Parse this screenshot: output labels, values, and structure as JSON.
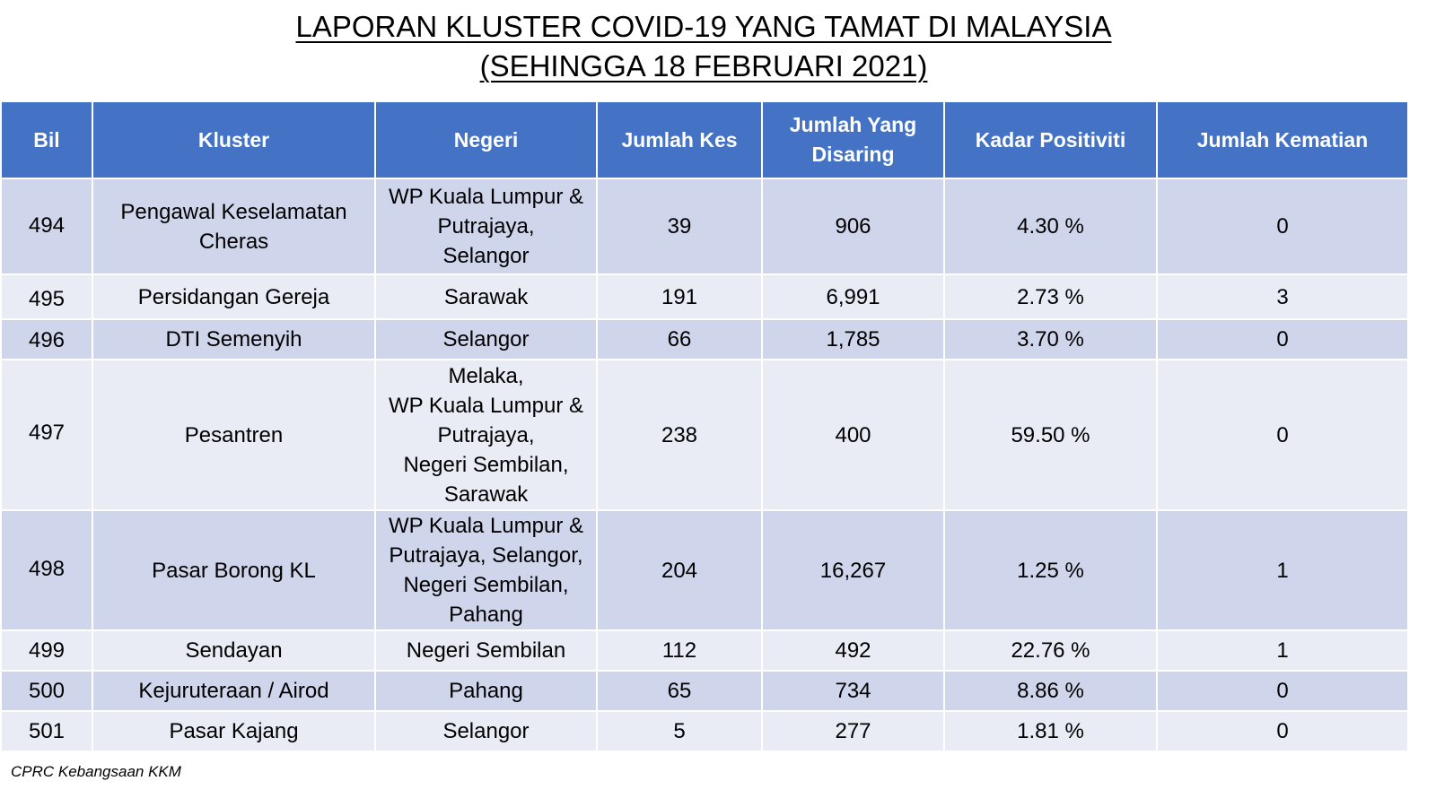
{
  "title": {
    "line1": "LAPORAN KLUSTER COVID-19 YANG TAMAT DI MALAYSIA",
    "line2": "(SEHINGGA 18 FEBRUARI 2021)"
  },
  "table": {
    "headers": [
      "Bil",
      "Kluster",
      "Negeri",
      "Jumlah Kes",
      "Jumlah Yang Disaring",
      "Kadar Positiviti",
      "Jumlah Kematian"
    ],
    "rows": [
      {
        "bil": "494",
        "kluster": [
          "Pengawal Keselamatan",
          "Cheras"
        ],
        "negeri": [
          "WP Kuala Lumpur &",
          "Putrajaya,",
          "Selangor"
        ],
        "kes": "39",
        "disaring": "906",
        "positiviti": "4.30 %",
        "kematian": "0"
      },
      {
        "bil": "495",
        "kluster": [
          "Persidangan Gereja"
        ],
        "negeri": [
          "Sarawak"
        ],
        "kes": "191",
        "disaring": "6,991",
        "positiviti": "2.73 %",
        "kematian": "3"
      },
      {
        "bil": "496",
        "kluster": [
          "DTI Semenyih"
        ],
        "negeri": [
          "Selangor"
        ],
        "kes": "66",
        "disaring": "1,785",
        "positiviti": "3.70 %",
        "kematian": "0"
      },
      {
        "bil": "497",
        "kluster": [
          "Pesantren"
        ],
        "negeri": [
          "Melaka,",
          "WP Kuala Lumpur &",
          "Putrajaya,",
          "Negeri Sembilan,",
          "Sarawak"
        ],
        "kes": "238",
        "disaring": "400",
        "positiviti": "59.50 %",
        "kematian": "0"
      },
      {
        "bil": "498",
        "kluster": [
          "Pasar Borong KL"
        ],
        "negeri": [
          "WP Kuala Lumpur &",
          "Putrajaya,  Selangor,",
          "Negeri Sembilan,",
          "Pahang"
        ],
        "kes": "204",
        "disaring": "16,267",
        "positiviti": "1.25 %",
        "kematian": "1"
      },
      {
        "bil": "499",
        "kluster": [
          "Sendayan"
        ],
        "negeri": [
          "Negeri Sembilan"
        ],
        "kes": "112",
        "disaring": "492",
        "positiviti": "22.76 %",
        "kematian": "1"
      },
      {
        "bil": "500",
        "kluster": [
          "Kejuruteraan / Airod"
        ],
        "negeri": [
          "Pahang"
        ],
        "kes": "65",
        "disaring": "734",
        "positiviti": "8.86 %",
        "kematian": "0"
      },
      {
        "bil": "501",
        "kluster": [
          "Pasar Kajang"
        ],
        "negeri": [
          "Selangor"
        ],
        "kes": "5",
        "disaring": "277",
        "positiviti": "1.81 %",
        "kematian": "0"
      }
    ]
  },
  "footer": "CPRC Kebangsaan KKM",
  "colors": {
    "header_bg": "#4472c4",
    "row_odd": "#cfd5ea",
    "row_even": "#e9ebf5"
  }
}
